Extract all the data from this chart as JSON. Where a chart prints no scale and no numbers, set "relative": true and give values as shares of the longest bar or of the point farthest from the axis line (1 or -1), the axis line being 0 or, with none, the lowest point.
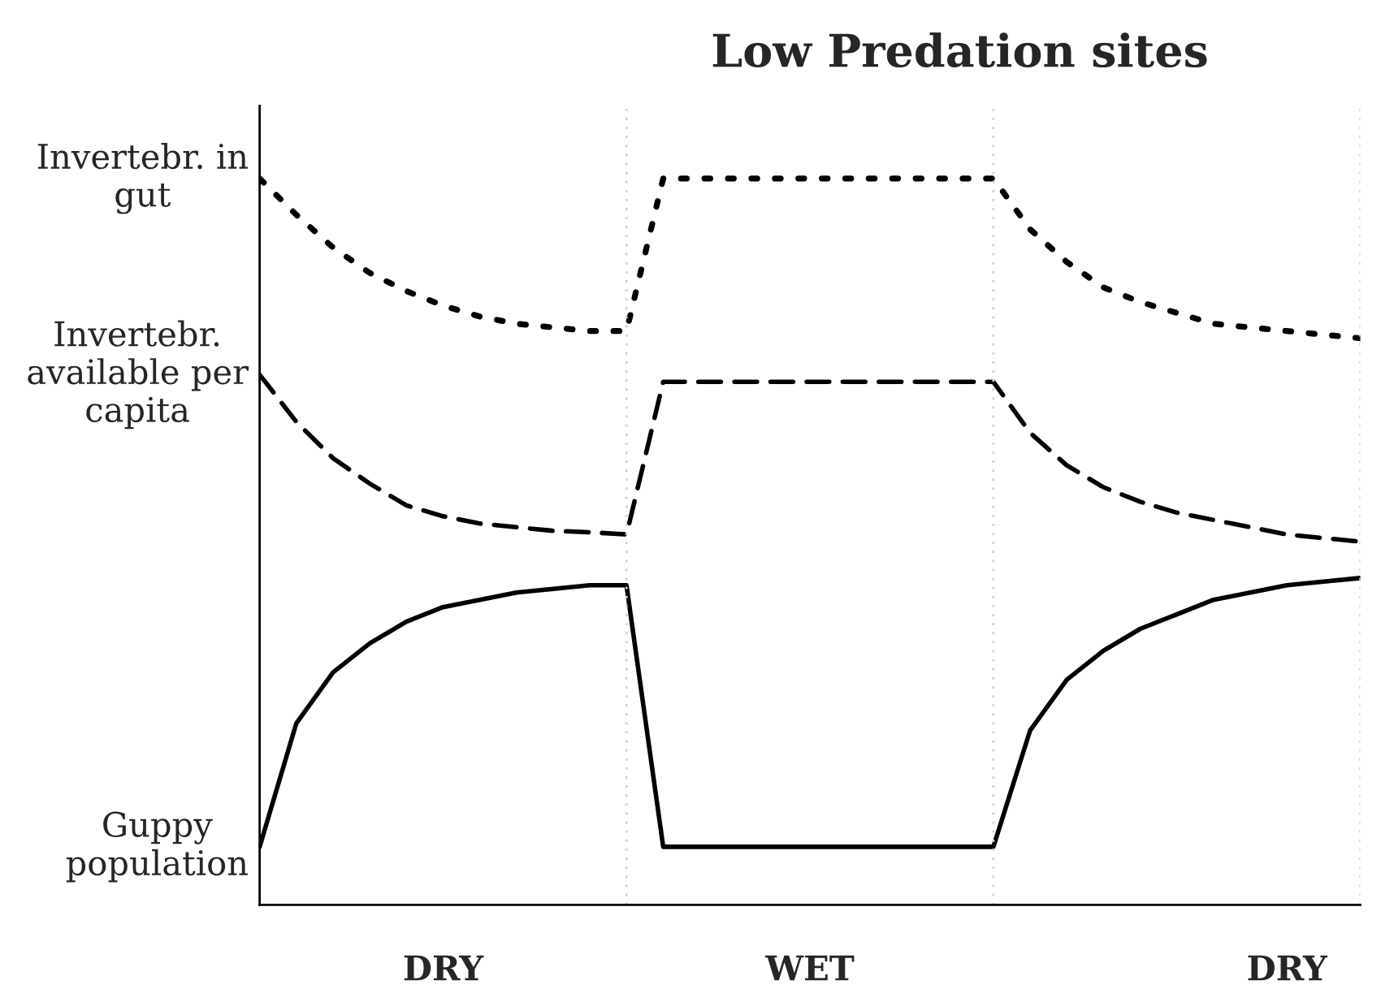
{
  "chart_data": {
    "type": "line",
    "title": "Low Predation sites",
    "relative": true,
    "categories": [
      null,
      null,
      null,
      null,
      null,
      "DRY",
      null,
      null,
      null,
      null,
      null,
      null,
      null,
      null,
      null,
      "WET",
      null,
      null,
      null,
      null,
      null,
      null,
      null,
      null,
      null,
      null,
      null,
      null,
      "DRY",
      null,
      null
    ],
    "series": [
      {
        "name": "Invertebr. in gut",
        "color": "#000000",
        "line_style": "dotted",
        "values": [
          1.0,
          0.95,
          0.905,
          0.87,
          0.845,
          0.825,
          0.81,
          0.8,
          0.795,
          0.79,
          0.79,
          1.0,
          1.0,
          1.0,
          1.0,
          1.0,
          1.0,
          1.0,
          1.0,
          1.0,
          1.0,
          0.93,
          0.885,
          0.85,
          0.83,
          0.815,
          0.8,
          0.795,
          0.79,
          0.785,
          0.78
        ]
      },
      {
        "name": "Invertebr. available per capita",
        "color": "#000000",
        "line_style": "dashed",
        "values": [
          0.73,
          0.665,
          0.615,
          0.58,
          0.55,
          0.535,
          0.525,
          0.52,
          0.515,
          0.513,
          0.51,
          0.72,
          0.72,
          0.72,
          0.72,
          0.72,
          0.72,
          0.72,
          0.72,
          0.72,
          0.72,
          0.65,
          0.605,
          0.575,
          0.555,
          0.54,
          0.53,
          0.52,
          0.51,
          0.505,
          0.5
        ]
      },
      {
        "name": "Guppy population",
        "color": "#000000",
        "line_style": "solid",
        "values": [
          0.08,
          0.25,
          0.32,
          0.36,
          0.39,
          0.41,
          0.42,
          0.43,
          0.435,
          0.44,
          0.44,
          0.08,
          0.08,
          0.08,
          0.08,
          0.08,
          0.08,
          0.08,
          0.08,
          0.08,
          0.08,
          0.24,
          0.31,
          0.35,
          0.38,
          0.4,
          0.42,
          0.43,
          0.44,
          0.445,
          0.45
        ]
      }
    ],
    "grid": "x",
    "legend": false
  }
}
